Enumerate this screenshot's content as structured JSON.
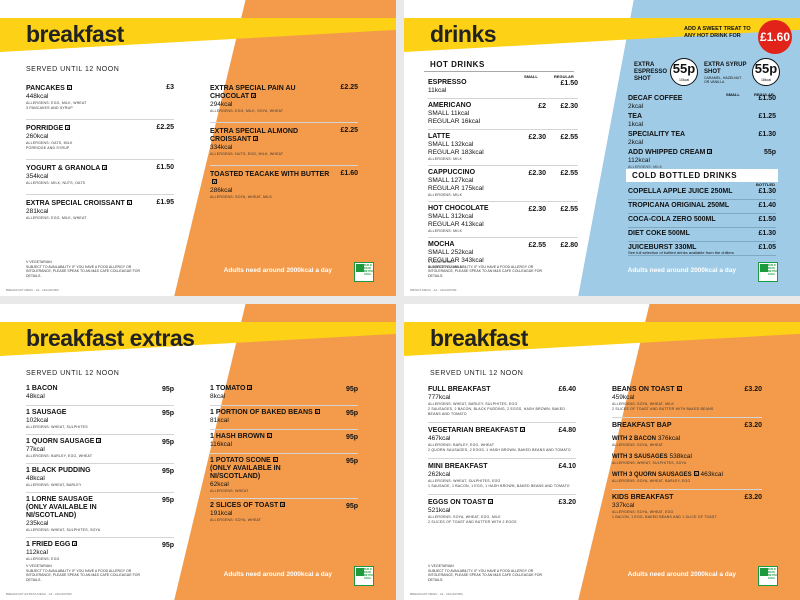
{
  "common": {
    "adults_line": "Adults need around 2000kcal a day",
    "vegetarian_key": "V VEGETARIAN",
    "allergen_notice": "SUBJECT TO AVAILABILITY. IF YOU HAVE A FOOD ALLERGY OR INTOLERANCE, PLEASE SPEAK TO AN M&S CAFE COLLEAGUE FOR DETAILS.",
    "badge_text": "BUILD BACK BETTER GOAL",
    "served": "SERVED UNTIL 12 NOON",
    "v_mark": "V"
  },
  "breakfast1": {
    "title": "breakfast",
    "footer_code": "BREAKFAST MENU · A4 · 210x297MM",
    "left": [
      {
        "name": "PANCAKES",
        "v": true,
        "kcal": "448kcal",
        "allergens": "ALLERGENS: EGG, MILK, WHEAT",
        "desc": "3 PANCAKES AND SYRUP",
        "price": "£3"
      },
      {
        "name": "PORRIDGE",
        "v": true,
        "kcal": "260kcal",
        "allergens": "ALLERGENS: OATS, MILK",
        "desc": "PORRIDGE AND SYRUP",
        "price": "£2.25"
      },
      {
        "name": "YOGURT & GRANOLA",
        "v": true,
        "kcal": "354kcal",
        "allergens": "ALLERGENS: MILK, NUTS, OATS",
        "desc": "",
        "price": "£1.50"
      },
      {
        "name": "EXTRA SPECIAL CROISSANT",
        "v": true,
        "kcal": "281kcal",
        "allergens": "ALLERGENS: EGG, MILK, WHEAT",
        "desc": "",
        "price": "£1.95"
      }
    ],
    "right": [
      {
        "name": "EXTRA SPECIAL PAIN AU CHOCOLAT",
        "v": true,
        "kcal": "294kcal",
        "allergens": "ALLERGENS: EGG, MILK, SOYA, WHEAT",
        "desc": "",
        "price": "£2.25"
      },
      {
        "name": "EXTRA SPECIAL ALMOND CROISSANT",
        "v": true,
        "kcal": "334kcal",
        "allergens": "ALLERGENS: NUTS, EGG, MILK, WHEAT",
        "desc": "",
        "price": "£2.25"
      },
      {
        "name": "TOASTED TEACAKE WITH BUTTER",
        "v": true,
        "kcal": "286kcal",
        "allergens": "ALLERGENS: SOYA, WHEAT, MILK",
        "desc": "",
        "price": "£1.60"
      }
    ]
  },
  "drinks": {
    "title": "drinks",
    "footer_code": "DRINKS MENU · A4 · 210x297MM",
    "promo": "ADD A SWEET TREAT TO ANY HOT DRINK FOR",
    "promo_price": "£1.60",
    "espresso_shot_label": "EXTRA ESPRESSO SHOT",
    "espresso_shot_price": "55p",
    "espresso_shot_kcal": "10kcal",
    "syrup_shot_label": "EXTRA SYRUP SHOT",
    "syrup_shot_sub": "CARAMEL, HAZELNUT OR VANILLA",
    "syrup_shot_price": "55p",
    "syrup_shot_kcal": "18kcal",
    "hot_header": "HOT DRINKS",
    "small_label": "SMALL",
    "regular_label": "REGULAR",
    "hot": [
      {
        "name": "ESPRESSO",
        "kcal": "11kcal",
        "small_kcal": "",
        "reg_kcal": "",
        "allergens": "",
        "small": "",
        "regular": "£1.50"
      },
      {
        "name": "AMERICANO",
        "kcal": "",
        "small_kcal": "SMALL 11kcal",
        "reg_kcal": "REGULAR 16kcal",
        "allergens": "",
        "small": "£2",
        "regular": "£2.30"
      },
      {
        "name": "LATTE",
        "kcal": "",
        "small_kcal": "SMALL 132kcal",
        "reg_kcal": "REGULAR 183kcal",
        "allergens": "ALLERGENS: MILK",
        "small": "£2.30",
        "regular": "£2.55"
      },
      {
        "name": "CAPPUCCINO",
        "kcal": "",
        "small_kcal": "SMALL 127kcal",
        "reg_kcal": "REGULAR 175kcal",
        "allergens": "ALLERGENS: MILK",
        "small": "£2.30",
        "regular": "£2.55"
      },
      {
        "name": "HOT CHOCOLATE",
        "kcal": "",
        "small_kcal": "SMALL 312kcal",
        "reg_kcal": "REGULAR 413kcal",
        "allergens": "ALLERGENS: MILK",
        "small": "£2.30",
        "regular": "£2.55"
      },
      {
        "name": "MOCHA",
        "kcal": "",
        "small_kcal": "SMALL 252kcal",
        "reg_kcal": "REGULAR 343kcal",
        "allergens": "ALLERGENS: MILK",
        "small": "£2.55",
        "regular": "£2.80"
      }
    ],
    "right_items": [
      {
        "name": "DECAF COFFEE",
        "kcal": "2kcal",
        "allergens": "",
        "price": "£1.50"
      },
      {
        "name": "TEA",
        "kcal": "1kcal",
        "allergens": "",
        "price": "£1.25"
      },
      {
        "name": "SPECIALITY TEA",
        "kcal": "2kcal",
        "allergens": "",
        "price": "£1.30"
      },
      {
        "name": "ADD WHIPPED CREAM",
        "v": true,
        "kcal": "112kcal",
        "allergens": "ALLERGENS: MILK",
        "price": "55p"
      }
    ],
    "cold_header": "COLD BOTTLED DRINKS",
    "bottled_label": "BOTTLED",
    "cold": [
      {
        "name": "COPELLA APPLE JUICE 250ML",
        "price": "£1.30"
      },
      {
        "name": "TROPICANA ORIGINAL 250ML",
        "price": "£1.40"
      },
      {
        "name": "COCA-COLA ZERO 500ML",
        "price": "£1.50"
      },
      {
        "name": "DIET COKE 500ML",
        "price": "£1.30"
      },
      {
        "name": "JUICEBURST 330ML",
        "price": "£1.05"
      }
    ],
    "cold_note": "See full selection of bottled drinks available from the chillers"
  },
  "extras": {
    "title": "breakfast extras",
    "footer_code": "BREAKFAST EXTRAS MENU · A4 · 210x297MM",
    "left": [
      {
        "name": "1 BACON",
        "v": false,
        "kcal": "48kcal",
        "allergens": "",
        "sub": "",
        "price": "95p"
      },
      {
        "name": "1 SAUSAGE",
        "v": false,
        "kcal": "102kcal",
        "allergens": "ALLERGENS: WHEAT, SULPHITES",
        "sub": "",
        "price": "95p"
      },
      {
        "name": "1 QUORN SAUSAGE",
        "v": true,
        "kcal": "77kcal",
        "allergens": "ALLERGENS: BARLEY, EGG, WHEAT",
        "sub": "",
        "price": "95p"
      },
      {
        "name": "1 BLACK PUDDING",
        "v": false,
        "kcal": "48kcal",
        "allergens": "ALLERGENS: WHEAT, BARLEY",
        "sub": "",
        "price": "95p"
      },
      {
        "name": "1 LORNE SAUSAGE",
        "v": false,
        "kcal": "235kcal",
        "allergens": "ALLERGENS: WHEAT, SULPHITES, SOYA",
        "sub": "(ONLY AVAILABLE IN NI/SCOTLAND)",
        "price": "95p"
      },
      {
        "name": "1 FRIED EGG",
        "v": true,
        "kcal": "112kcal",
        "allergens": "ALLERGENS: EGG",
        "sub": "",
        "price": "95p"
      }
    ],
    "right": [
      {
        "name": "1 TOMATO",
        "v": true,
        "kcal": "8kcal",
        "allergens": "",
        "sub": "",
        "price": "95p"
      },
      {
        "name": "1 PORTION OF BAKED BEANS",
        "v": true,
        "kcal": "81kcal",
        "allergens": "",
        "sub": "",
        "price": "95p"
      },
      {
        "name": "1 HASH BROWN",
        "v": true,
        "kcal": "116kcal",
        "allergens": "",
        "sub": "",
        "price": "95p"
      },
      {
        "name": "1 POTATO SCONE",
        "v": true,
        "kcal": "62kcal",
        "allergens": "ALLERGENS: WHEAT",
        "sub": "(ONLY AVAILABLE IN NI/SCOTLAND)",
        "price": "95p"
      },
      {
        "name": "2 SLICES OF TOAST",
        "v": true,
        "kcal": "191kcal",
        "allergens": "ALLERGENS: SOYA, WHEAT",
        "sub": "",
        "price": "95p"
      }
    ]
  },
  "breakfast2": {
    "title": "breakfast",
    "footer_code": "BREAKFAST MENU · A4 · 210x297MM",
    "left": [
      {
        "name": "FULL BREAKFAST",
        "v": false,
        "kcal": "777kcal",
        "allergens": "ALLERGENS: WHEAT, BARLEY, SULPHITES, EGG",
        "desc": "2 SAUSAGES, 2 BACON, BLACK PUDDING, 2 EGGS, HASH BROWN, BAKED BEANS AND TOMATO",
        "price": "£6.40"
      },
      {
        "name": "VEGETARIAN BREAKFAST",
        "v": true,
        "kcal": "467kcal",
        "allergens": "ALLERGENS: BARLEY, EGG, WHEAT",
        "desc": "2 QUORN SAUSAGES, 2 EGGS, 1 HASH BROWN, BAKED BEANS AND TOMATO",
        "price": "£4.80"
      },
      {
        "name": "MINI BREAKFAST",
        "v": false,
        "kcal": "262kcal",
        "allergens": "ALLERGENS: WHEAT, SULPHITES, EGG",
        "desc": "1 SAUSAGE, 1 BACON, 1 EGG, 1 HASH BROWN, BAKED BEANS AND TOMATO",
        "price": "£4.10"
      },
      {
        "name": "EGGS ON TOAST",
        "v": true,
        "kcal": "521kcal",
        "allergens": "ALLERGENS: SOYA, WHEAT, EGG, MILK",
        "desc": "2 SLICES OF TOAST AND BUTTER WITH 2 EGGS",
        "price": "£3.20"
      }
    ],
    "right": [
      {
        "name": "BEANS ON TOAST",
        "v": true,
        "kcal": "459kcal",
        "allergens": "ALLERGENS: SOYA, WHEAT, MILK",
        "desc": "2 SLICES OF TOAST AND BUTTER WITH BAKED BEANS",
        "price": "£3.20"
      },
      {
        "name": "BREAKFAST BAP",
        "v": false,
        "kcal": "",
        "allergens": "",
        "desc": "",
        "price": "£3.20",
        "options": [
          {
            "label": "WITH 2 BACON",
            "v": false,
            "kcal": "376kcal",
            "allergens": "ALLERGENS: SOYA, WHEAT"
          },
          {
            "label": "WITH 3 SAUSAGES",
            "v": false,
            "kcal": "538kcal",
            "allergens": "ALLERGENS: WHEAT, SULPHITES, SOYA"
          },
          {
            "label": "WITH 3 QUORN SAUSAGES",
            "v": true,
            "kcal": "463kcal",
            "allergens": "ALLERGENS: SOYA, WHEAT, BARLEY, EGG"
          }
        ]
      },
      {
        "name": "KIDS BREAKFAST",
        "v": false,
        "kcal": "337kcal",
        "allergens": "ALLERGENS: SOYA, WHEAT, EGG",
        "desc": "1 BACON, 1 EGG, BAKED BEANS AND 1 SLICE OF TOAST",
        "price": "£3.20"
      }
    ]
  }
}
